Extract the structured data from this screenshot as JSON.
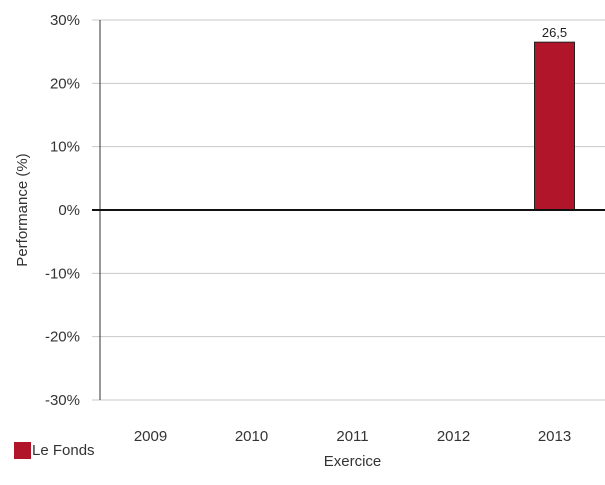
{
  "chart_data": {
    "type": "bar",
    "xlabel": "Exercice",
    "ylabel": "Performance (%)",
    "categories": [
      "2009",
      "2010",
      "2011",
      "2012",
      "2013"
    ],
    "series": [
      {
        "name": "Le Fonds",
        "values": [
          null,
          null,
          null,
          null,
          26.5
        ],
        "labels": [
          "",
          "",
          "",
          "",
          "26,5"
        ],
        "color": "#b0152a"
      }
    ],
    "ylim": [
      -30,
      30
    ],
    "yticks": [
      30,
      20,
      10,
      0,
      -10,
      -20,
      -30
    ],
    "ytick_labels": [
      "30%",
      "20%",
      "10%",
      "0%",
      "-10%",
      "-20%",
      "-30%"
    ],
    "grid": true,
    "legend_position": "bottom-left"
  }
}
